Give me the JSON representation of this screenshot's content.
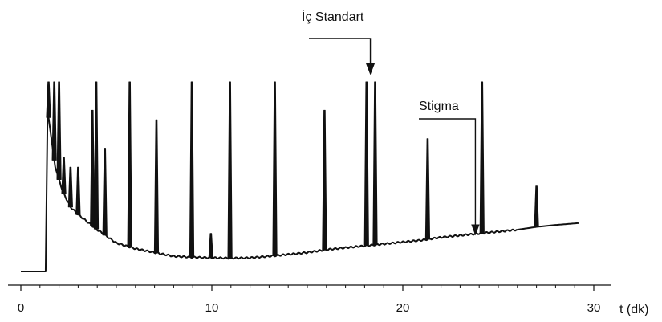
{
  "chart_data": {
    "type": "line",
    "title": "",
    "xlabel": "t (dk)",
    "ylabel": "",
    "xlim": [
      0,
      30
    ],
    "x_ticks": [
      0,
      10,
      20,
      30
    ],
    "x_tick_labels": [
      "0",
      "10",
      "20",
      "30"
    ],
    "grid": false,
    "series": [
      {
        "baseline": [
          [
            0.0,
            0.0
          ],
          [
            1.3,
            0.0
          ],
          [
            1.4,
            0.85
          ],
          [
            1.8,
            0.55
          ],
          [
            2.2,
            0.42
          ],
          [
            2.6,
            0.34
          ],
          [
            3.0,
            0.3
          ],
          [
            3.5,
            0.26
          ],
          [
            4.0,
            0.22
          ],
          [
            5.0,
            0.15
          ],
          [
            6.0,
            0.12
          ],
          [
            7.0,
            0.1
          ],
          [
            8.0,
            0.08
          ],
          [
            9.0,
            0.075
          ],
          [
            10.0,
            0.072
          ],
          [
            11.0,
            0.07
          ],
          [
            12.0,
            0.072
          ],
          [
            13.0,
            0.08
          ],
          [
            14.0,
            0.09
          ],
          [
            15.0,
            0.1
          ],
          [
            16.0,
            0.115
          ],
          [
            17.0,
            0.125
          ],
          [
            18.0,
            0.135
          ],
          [
            19.0,
            0.145
          ],
          [
            20.0,
            0.155
          ],
          [
            21.0,
            0.165
          ],
          [
            22.0,
            0.18
          ],
          [
            23.0,
            0.19
          ],
          [
            24.0,
            0.2
          ],
          [
            25.0,
            0.21
          ],
          [
            26.0,
            0.22
          ],
          [
            27.0,
            0.235
          ],
          [
            28.0,
            0.245
          ],
          [
            29.2,
            0.255
          ]
        ],
        "peaks": [
          {
            "t": 1.45,
            "h": 1.0
          },
          {
            "t": 1.75,
            "h": 1.0
          },
          {
            "t": 2.0,
            "h": 1.0
          },
          {
            "t": 2.25,
            "h": 0.6
          },
          {
            "t": 2.6,
            "h": 0.55
          },
          {
            "t": 3.0,
            "h": 0.55
          },
          {
            "t": 3.75,
            "h": 0.85
          },
          {
            "t": 3.95,
            "h": 1.0
          },
          {
            "t": 4.4,
            "h": 0.65
          },
          {
            "t": 5.7,
            "h": 1.0
          },
          {
            "t": 7.1,
            "h": 0.8
          },
          {
            "t": 8.95,
            "h": 1.0
          },
          {
            "t": 9.95,
            "h": 0.2
          },
          {
            "t": 10.95,
            "h": 1.0
          },
          {
            "t": 13.3,
            "h": 1.0
          },
          {
            "t": 15.9,
            "h": 0.85
          },
          {
            "t": 18.1,
            "h": 1.0
          },
          {
            "t": 18.55,
            "h": 1.0
          },
          {
            "t": 21.3,
            "h": 0.7
          },
          {
            "t": 24.15,
            "h": 1.0
          },
          {
            "t": 27.0,
            "h": 0.45
          }
        ]
      }
    ],
    "annotations": [
      {
        "text": "İç Standart",
        "t": 18.3
      },
      {
        "text": "Stigma",
        "t": 23.8
      }
    ]
  }
}
